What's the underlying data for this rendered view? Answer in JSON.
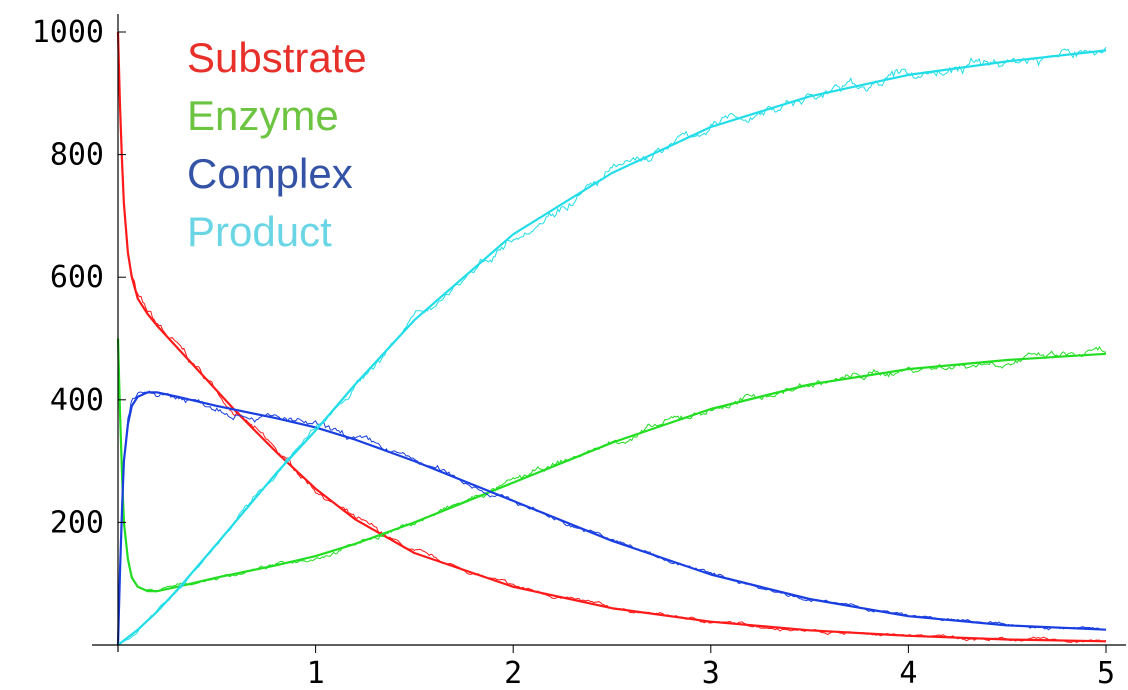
{
  "chart_data": {
    "type": "line",
    "title": "",
    "xlabel": "",
    "ylabel": "",
    "xlim": [
      0,
      5
    ],
    "ylim": [
      0,
      1000
    ],
    "grid": false,
    "legend_placement": "top-left",
    "x_ticks": [
      {
        "value": 1,
        "label": "1"
      },
      {
        "value": 2,
        "label": "2"
      },
      {
        "value": 3,
        "label": "3"
      },
      {
        "value": 4,
        "label": "4"
      },
      {
        "value": 5,
        "label": "5"
      }
    ],
    "y_ticks": [
      {
        "value": 200,
        "label": "200"
      },
      {
        "value": 400,
        "label": "400"
      },
      {
        "value": 600,
        "label": "600"
      },
      {
        "value": 800,
        "label": "800"
      },
      {
        "value": 1000,
        "label": "1000"
      }
    ],
    "series": [
      {
        "name": "Substrate",
        "color": "#ff1a1a",
        "legend_color": "#e8302b",
        "x": [
          0,
          0.01,
          0.02,
          0.03,
          0.05,
          0.07,
          0.1,
          0.15,
          0.2,
          0.3,
          0.4,
          0.5,
          0.6,
          0.8,
          1.0,
          1.2,
          1.5,
          2.0,
          2.5,
          3.0,
          3.5,
          4.0,
          4.5,
          5.0
        ],
        "y": [
          1000,
          880,
          790,
          720,
          640,
          600,
          565,
          540,
          520,
          485,
          450,
          415,
          380,
          315,
          255,
          205,
          150,
          95,
          60,
          38,
          24,
          15,
          9,
          6
        ]
      },
      {
        "name": "Enzyme",
        "color": "#22dd22",
        "legend_color": "#6cc441",
        "x": [
          0,
          0.01,
          0.02,
          0.03,
          0.05,
          0.07,
          0.1,
          0.15,
          0.2,
          0.3,
          0.5,
          0.8,
          1.0,
          1.2,
          1.5,
          2.0,
          2.5,
          3.0,
          3.5,
          4.0,
          4.5,
          5.0
        ],
        "y": [
          500,
          380,
          280,
          200,
          140,
          110,
          95,
          88,
          88,
          95,
          110,
          130,
          145,
          165,
          200,
          265,
          330,
          385,
          425,
          450,
          465,
          475
        ]
      },
      {
        "name": "Complex",
        "color": "#1a3fe0",
        "legend_color": "#3553a6",
        "x": [
          0,
          0.01,
          0.02,
          0.03,
          0.05,
          0.07,
          0.1,
          0.15,
          0.2,
          0.3,
          0.5,
          0.8,
          1.0,
          1.2,
          1.5,
          2.0,
          2.5,
          3.0,
          3.5,
          4.0,
          4.5,
          5.0
        ],
        "y": [
          0,
          120,
          220,
          300,
          360,
          390,
          405,
          412,
          412,
          405,
          390,
          370,
          355,
          335,
          300,
          235,
          170,
          115,
          75,
          47,
          32,
          25
        ]
      },
      {
        "name": "Product",
        "color": "#22dde8",
        "legend_color": "#6ad5e4",
        "x": [
          0,
          0.1,
          0.2,
          0.3,
          0.5,
          0.8,
          1.0,
          1.2,
          1.5,
          2.0,
          2.5,
          3.0,
          3.5,
          4.0,
          4.5,
          5.0
        ],
        "y": [
          0,
          25,
          55,
          90,
          165,
          280,
          350,
          425,
          530,
          670,
          770,
          845,
          895,
          930,
          952,
          970
        ]
      }
    ]
  }
}
